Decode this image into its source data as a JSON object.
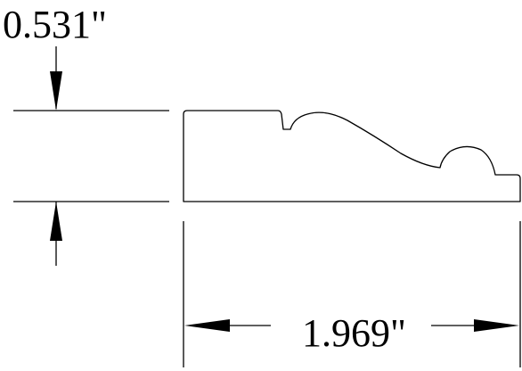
{
  "dimensions": {
    "height_label": "0.531\"",
    "width_label": "1.969\""
  }
}
